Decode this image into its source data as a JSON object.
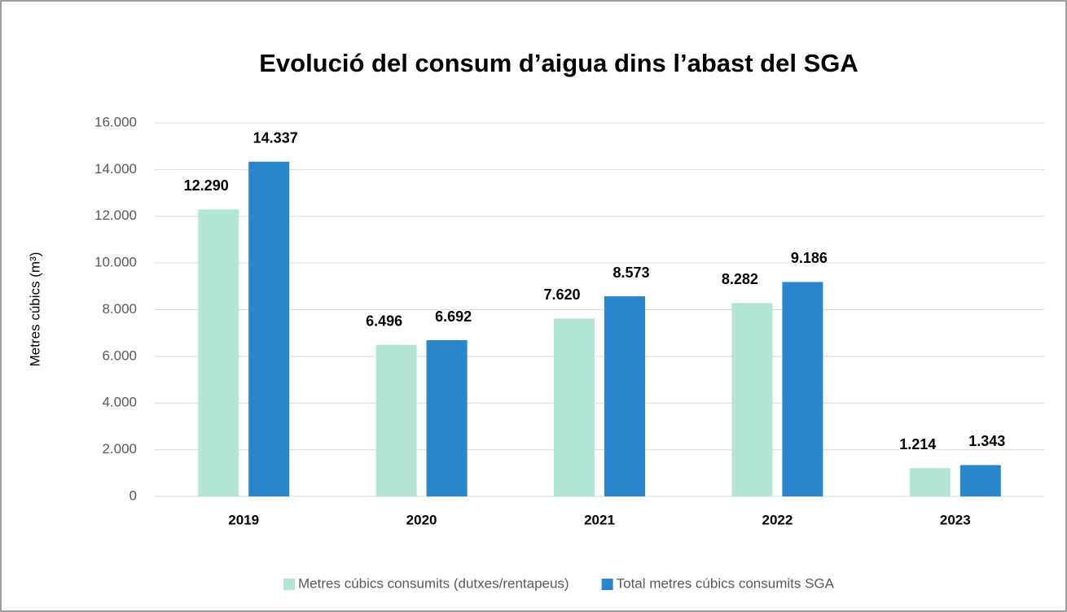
{
  "chart_data": {
    "type": "bar",
    "title": "Evolució del consum d’aigua dins l’abast del SGA",
    "y_label": "Metres cúbics (m³)",
    "categories": [
      "2019",
      "2020",
      "2021",
      "2022",
      "2023"
    ],
    "series": [
      {
        "name": "Metres cúbics consumits (dutxes/rentapeus)",
        "color": "#b3e5d6",
        "values": [
          12290,
          6496,
          7620,
          8282,
          1214
        ],
        "value_labels": [
          "12.290",
          "6.496",
          "7.620",
          "8.282",
          "1.214"
        ]
      },
      {
        "name": "Total metres cúbics consumits SGA",
        "color": "#2986cc",
        "values": [
          14337,
          6692,
          8573,
          9186,
          1343
        ],
        "value_labels": [
          "14.337",
          "6.692",
          "8.573",
          "9.186",
          "1.343"
        ]
      }
    ],
    "ylim": [
      0,
      16000
    ],
    "yticks": [
      0,
      {
        "value": 2000,
        "label": "2.000"
      },
      {
        "value": 4000,
        "label": "4.000"
      },
      {
        "value": 6000,
        "label": "6.000"
      },
      {
        "value": 8000,
        "label": "8.000"
      },
      {
        "value": 10000,
        "label": "10.000"
      },
      {
        "value": 12000,
        "label": "12.000"
      },
      {
        "value": 14000,
        "label": "14.000"
      },
      {
        "value": 16000,
        "label": "16.000"
      }
    ],
    "grid": true,
    "legend": "bottom"
  }
}
